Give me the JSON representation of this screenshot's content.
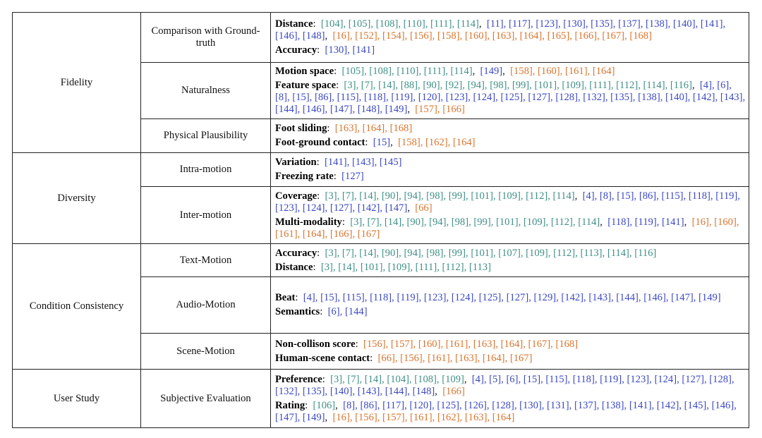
{
  "colors": {
    "green": "#3f8f86",
    "blue": "#3b48c4",
    "orange": "#d9742e",
    "border": "#222222"
  },
  "rows": [
    {
      "category": "Fidelity",
      "subs": [
        {
          "name": "Comparison with Ground-truth",
          "metrics": [
            {
              "name": "Distance",
              "groups": [
                {
                  "color": "g",
                  "refs": [
                    "[104]",
                    "[105]",
                    "[108]",
                    "[110]",
                    "[111]",
                    "[114]"
                  ]
                },
                {
                  "color": "b",
                  "refs": [
                    "[11]",
                    "[117]",
                    "[123]",
                    "[130]",
                    "[135]",
                    "[137]",
                    "[138]",
                    "[140]",
                    "[141]",
                    "[146]",
                    "[148]"
                  ]
                },
                {
                  "color": "o",
                  "refs": [
                    "[16]",
                    "[152]",
                    "[154]",
                    "[156]",
                    "[158]",
                    "[160]",
                    "[163]",
                    "[164]",
                    "[165]",
                    "[166]",
                    "[167]",
                    "[168]"
                  ]
                }
              ]
            },
            {
              "name": "Accuracy",
              "groups": [
                {
                  "color": "b",
                  "refs": [
                    "[130]",
                    "[141]"
                  ]
                }
              ]
            }
          ]
        },
        {
          "name": "Naturalness",
          "metrics": [
            {
              "name": "Motion space",
              "groups": [
                {
                  "color": "g",
                  "refs": [
                    "[105]",
                    "[108]",
                    "[110]",
                    "[111]",
                    "[114]"
                  ]
                },
                {
                  "color": "b",
                  "refs": [
                    "[149]"
                  ]
                },
                {
                  "color": "o",
                  "refs": [
                    "[158]",
                    "[160]",
                    "[161]",
                    "[164]"
                  ]
                }
              ]
            },
            {
              "name": "Feature space",
              "groups": [
                {
                  "color": "g",
                  "refs": [
                    "[3]",
                    "[7]",
                    "[14]",
                    "[88]",
                    "[90]",
                    "[92]",
                    "[94]",
                    "[98]",
                    "[99]",
                    "[101]",
                    "[109]",
                    "[111]",
                    "[112]",
                    "[114]",
                    "[116]"
                  ]
                },
                {
                  "color": "b",
                  "refs": [
                    "[4]",
                    "[6]",
                    "[8]",
                    "[15]",
                    "[86]",
                    "[115]",
                    "[118]",
                    "[119]",
                    "[120]",
                    "[123]",
                    "[124]",
                    "[125]",
                    "[127]",
                    "[128]",
                    "[132]",
                    "[135]",
                    "[138]",
                    "[140]",
                    "[142]",
                    "[143]",
                    "[144]",
                    "[146]",
                    "[147]",
                    "[148]",
                    "[149]"
                  ]
                },
                {
                  "color": "o",
                  "refs": [
                    "[157]",
                    "[166]"
                  ]
                }
              ]
            }
          ]
        },
        {
          "name": "Physical Plausibility",
          "metrics": [
            {
              "name": "Foot sliding",
              "groups": [
                {
                  "color": "o",
                  "refs": [
                    "[163]",
                    "[164]",
                    "[168]"
                  ]
                }
              ]
            },
            {
              "name": "Foot-ground contact",
              "groups": [
                {
                  "color": "b",
                  "refs": [
                    "[15]"
                  ]
                },
                {
                  "color": "o",
                  "refs": [
                    "[158]",
                    "[162]",
                    "[164]"
                  ]
                }
              ]
            }
          ]
        }
      ]
    },
    {
      "category": "Diversity",
      "subs": [
        {
          "name": "Intra-motion",
          "metrics": [
            {
              "name": "Variation",
              "groups": [
                {
                  "color": "b",
                  "refs": [
                    "[141]",
                    "[143]",
                    "[145]"
                  ]
                }
              ]
            },
            {
              "name": "Freezing rate",
              "groups": [
                {
                  "color": "b",
                  "refs": [
                    "[127]"
                  ]
                }
              ]
            }
          ]
        },
        {
          "name": "Inter-motion",
          "metrics": [
            {
              "name": "Coverage",
              "groups": [
                {
                  "color": "g",
                  "refs": [
                    "[3]",
                    "[7]",
                    "[14]",
                    "[90]",
                    "[94]",
                    "[98]",
                    "[99]",
                    "[101]",
                    "[109]",
                    "[112]",
                    "[114]"
                  ]
                },
                {
                  "color": "b",
                  "refs": [
                    "[4]",
                    "[8]",
                    "[15]",
                    "[86]",
                    "[115]",
                    "[118]",
                    "[119]",
                    "[123]",
                    "[124]",
                    "[127]",
                    "[142]",
                    "[147]"
                  ]
                },
                {
                  "color": "o",
                  "refs": [
                    "[66]"
                  ]
                }
              ]
            },
            {
              "name": "Multi-modality",
              "groups": [
                {
                  "color": "g",
                  "refs": [
                    "[3]",
                    "[7]",
                    "[14]",
                    "[90]",
                    "[94]",
                    "[98]",
                    "[99]",
                    "[101]",
                    "[109]",
                    "[112]",
                    "[114]"
                  ]
                },
                {
                  "color": "b",
                  "refs": [
                    "[118]",
                    "[119]",
                    "[141]"
                  ]
                },
                {
                  "color": "o",
                  "refs": [
                    "[16]",
                    "[160]",
                    "[161]",
                    "[164]",
                    "[166]",
                    "[167]"
                  ]
                }
              ]
            }
          ]
        }
      ]
    },
    {
      "category": "Condition Consistency",
      "subs": [
        {
          "name": "Text-Motion",
          "metrics": [
            {
              "name": "Accuracy",
              "groups": [
                {
                  "color": "g",
                  "refs": [
                    "[3]",
                    "[7]",
                    "[14]",
                    "[90]",
                    "[94]",
                    "[98]",
                    "[99]",
                    "[101]",
                    "[107]",
                    "[109]",
                    "[112]",
                    "[113]",
                    "[114]",
                    "[116]"
                  ]
                }
              ]
            },
            {
              "name": "Distance",
              "groups": [
                {
                  "color": "g",
                  "refs": [
                    "[3]",
                    "[14]",
                    "[101]",
                    "[109]",
                    "[111]",
                    "[112]",
                    "[113]"
                  ]
                }
              ]
            }
          ]
        },
        {
          "name": "Audio-Motion",
          "metrics": [
            {
              "name": "Beat",
              "groups": [
                {
                  "color": "b",
                  "refs": [
                    "[4]",
                    "[15]",
                    "[115]",
                    "[118]",
                    "[119]",
                    "[123]",
                    "[124]",
                    "[125]",
                    "[127]",
                    "[129]",
                    "[142]",
                    "[143]",
                    "[144]",
                    "[146]",
                    "[147]",
                    "[149]"
                  ]
                }
              ]
            },
            {
              "name": "Semantics",
              "groups": [
                {
                  "color": "b",
                  "refs": [
                    "[6]",
                    "[144]"
                  ]
                }
              ]
            }
          ]
        },
        {
          "name": "Scene-Motion",
          "metrics": [
            {
              "name": "Non-collison score",
              "groups": [
                {
                  "color": "o",
                  "refs": [
                    "[156]",
                    "[157]",
                    "[160]",
                    "[161]",
                    "[163]",
                    "[164]",
                    "[167]",
                    "[168]"
                  ]
                }
              ]
            },
            {
              "name": "Human-scene contact",
              "groups": [
                {
                  "color": "o",
                  "refs": [
                    "[66]",
                    "[156]",
                    "[161]",
                    "[163]",
                    "[164]",
                    "[167]"
                  ]
                }
              ]
            }
          ]
        }
      ]
    },
    {
      "category": "User Study",
      "subs": [
        {
          "name": "Subjective Evaluation",
          "metrics": [
            {
              "name": "Preference",
              "groups": [
                {
                  "color": "g",
                  "refs": [
                    "[3]",
                    "[7]",
                    "[14]",
                    "[104]",
                    "[108]",
                    "[109]"
                  ]
                },
                {
                  "color": "b",
                  "refs": [
                    "[4]",
                    "[5]",
                    "[6]",
                    "[15]",
                    "[115]",
                    "[118]",
                    "[119]",
                    "[123]",
                    "[124]",
                    "[127]",
                    "[128]",
                    "[132]",
                    "[135]",
                    "[140]",
                    "[143]",
                    "[144]",
                    "[148]"
                  ]
                },
                {
                  "color": "o",
                  "refs": [
                    "[166]"
                  ]
                }
              ]
            },
            {
              "name": "Rating",
              "groups": [
                {
                  "color": "g",
                  "refs": [
                    "[106]"
                  ]
                },
                {
                  "color": "b",
                  "refs": [
                    "[8]",
                    "[86]",
                    "[117]",
                    "[120]",
                    "[125]",
                    "[126]",
                    "[128]",
                    "[130]",
                    "[131]",
                    "[137]",
                    "[138]",
                    "[141]",
                    "[142]",
                    "[145]",
                    "[146]",
                    "[147]",
                    "[149]"
                  ]
                },
                {
                  "color": "o",
                  "refs": [
                    "[16]",
                    "[156]",
                    "[157]",
                    "[161]",
                    "[162]",
                    "[163]",
                    "[164]"
                  ]
                }
              ]
            }
          ]
        }
      ]
    }
  ]
}
